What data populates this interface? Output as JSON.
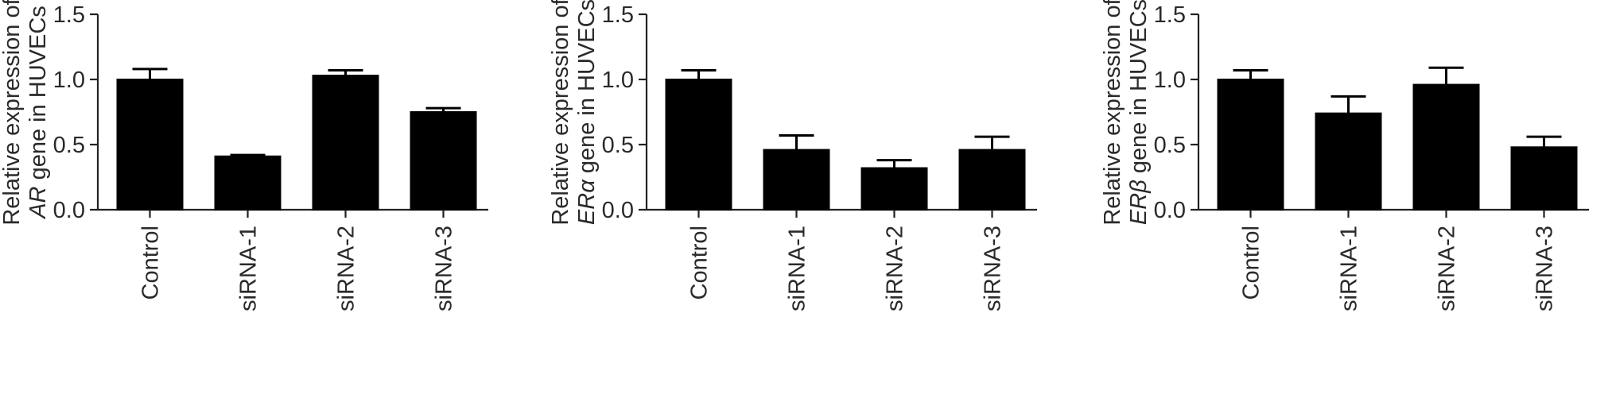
{
  "chart_data": [
    {
      "type": "bar",
      "categories": [
        "Control",
        "siRNA-1",
        "siRNA-2",
        "siRNA-3"
      ],
      "values": [
        1.0,
        0.41,
        1.03,
        0.75
      ],
      "errors": [
        0.08,
        0.01,
        0.04,
        0.03
      ],
      "ylabel_line1": "Relative expression of",
      "ylabel_gene": "AR",
      "ylabel_rest": " gene in HUVECs",
      "ylim": [
        0,
        1.5
      ],
      "yticks": [
        "0.0",
        "0.5",
        "1.0",
        "1.5"
      ],
      "bar_color": "#000000",
      "grid": false
    },
    {
      "type": "bar",
      "categories": [
        "Control",
        "siRNA-1",
        "siRNA-2",
        "siRNA-3"
      ],
      "values": [
        1.0,
        0.46,
        0.32,
        0.46
      ],
      "errors": [
        0.07,
        0.11,
        0.06,
        0.1
      ],
      "ylabel_line1": "Relative expression of",
      "ylabel_gene": "ERα",
      "ylabel_rest": " gene in HUVECs",
      "ylim": [
        0,
        1.5
      ],
      "yticks": [
        "0.0",
        "0.5",
        "1.0",
        "1.5"
      ],
      "bar_color": "#000000",
      "grid": false
    },
    {
      "type": "bar",
      "categories": [
        "Control",
        "siRNA-1",
        "siRNA-2",
        "siRNA-3"
      ],
      "values": [
        1.0,
        0.74,
        0.96,
        0.48
      ],
      "errors": [
        0.07,
        0.13,
        0.13,
        0.08
      ],
      "ylabel_line1": "Relative expression of",
      "ylabel_gene": "ERβ",
      "ylabel_rest": " gene in HUVECs",
      "ylim": [
        0,
        1.5
      ],
      "yticks": [
        "0.0",
        "0.5",
        "1.0",
        "1.5"
      ],
      "bar_color": "#000000",
      "grid": false
    }
  ]
}
